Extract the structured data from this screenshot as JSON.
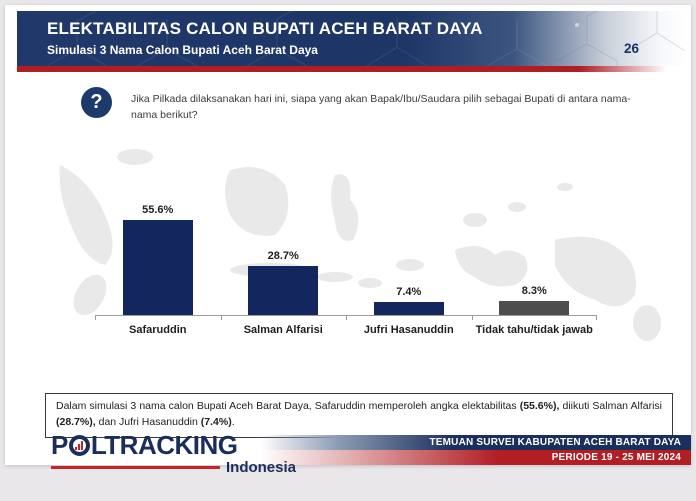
{
  "colors": {
    "navy": "#1b2f5c",
    "bar_navy": "#13265e",
    "bar_gray": "#4d4d4d",
    "red": "#b01e24"
  },
  "header": {
    "title": "ELEKTABILITAS CALON BUPATI ACEH BARAT DAYA",
    "subtitle": "Simulasi 3 Nama Calon Bupati Aceh Barat Daya",
    "page_number": "26"
  },
  "question": {
    "icon": "?",
    "text": "Jika Pilkada dilaksanakan hari ini, siapa yang akan Bapak/Ibu/Saudara pilih sebagai Bupati di antara nama-nama berikut?"
  },
  "chart_data": {
    "type": "bar",
    "categories": [
      "Safaruddin",
      "Salman Alfarisi",
      "Jufri Hasanuddin",
      "Tidak tahu/tidak jawab"
    ],
    "values": [
      55.6,
      28.7,
      7.4,
      8.3
    ],
    "labels": [
      "55.6%",
      "28.7%",
      "7.4%",
      "8.3%"
    ],
    "bar_colors": [
      "#13265e",
      "#13265e",
      "#13265e",
      "#4d4d4d"
    ],
    "title": "",
    "xlabel": "",
    "ylabel": "",
    "ylim": [
      0,
      60
    ],
    "grid": false,
    "legend": false
  },
  "summary": {
    "part1": "Dalam simulasi 3 nama calon Bupati Aceh Barat Daya, Safaruddin memperoleh angka elektabilitas ",
    "bold1": "(55.6%),",
    "part2": " diikuti Salman Alfarisi ",
    "bold2": "(28.7%),",
    "part3": " dan Jufri Hasanuddin ",
    "bold3": "(7.4%)",
    "part4": "."
  },
  "footer": {
    "logo_p": "P",
    "logo_rest": "LTRACKING",
    "logo_sub": "Indonesia",
    "banner_top": "TEMUAN SURVEI KABUPATEN ACEH BARAT DAYA",
    "banner_bottom": "PERIODE 19 - 25 MEI 2024"
  }
}
